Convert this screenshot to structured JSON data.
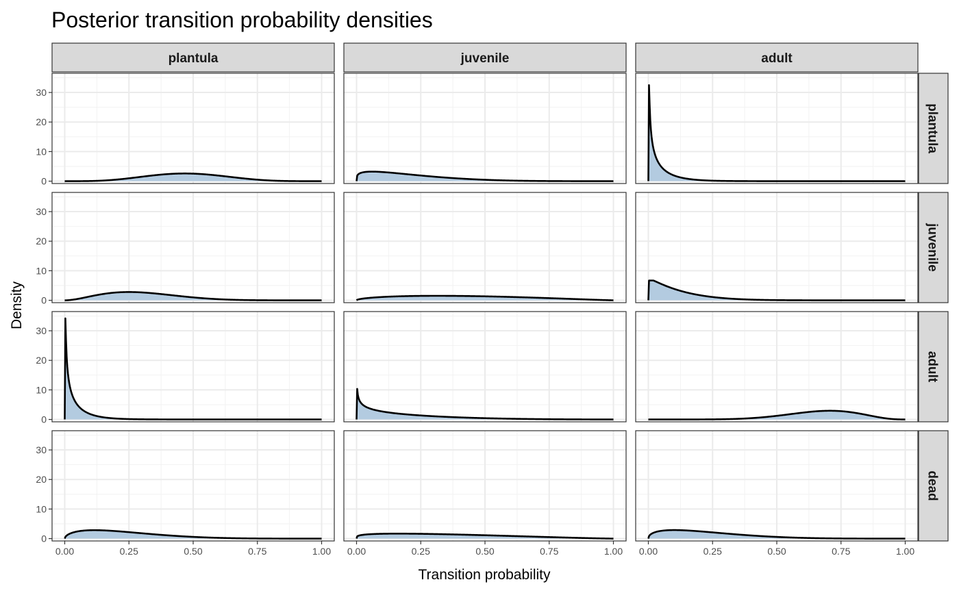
{
  "chart_data": {
    "type": "area",
    "title": "Posterior transition probability densities",
    "xlabel": "Transition probability",
    "ylabel": "Density",
    "xlim": [
      0,
      1
    ],
    "ylim": [
      -0.8,
      36.5
    ],
    "x_ticks": [
      0,
      0.25,
      0.5,
      0.75,
      1
    ],
    "x_tick_labels": [
      "0.00",
      "0.25",
      "0.50",
      "0.75",
      "1.00"
    ],
    "y_ticks": [
      0,
      10,
      20,
      30
    ],
    "y_tick_labels": [
      "0",
      "10",
      "20",
      "30"
    ],
    "columns": [
      "plantula",
      "juvenile",
      "adult"
    ],
    "rows": [
      "plantula",
      "juvenile",
      "adult",
      "dead"
    ],
    "fill_color": "#b3cbe0",
    "line_color": "#000000",
    "panels": [
      {
        "row": "plantula",
        "col": "plantula",
        "dist": "beta",
        "a": 5.2,
        "b": 5.8
      },
      {
        "row": "plantula",
        "col": "juvenile",
        "dist": "beta",
        "a": 1.25,
        "b": 4.9
      },
      {
        "row": "plantula",
        "col": "adult",
        "dist": "beta",
        "a": 0.5,
        "b": 12,
        "max": 32.5
      },
      {
        "row": "juvenile",
        "col": "plantula",
        "dist": "beta",
        "a": 3,
        "b": 7
      },
      {
        "row": "juvenile",
        "col": "juvenile",
        "dist": "beta",
        "a": 1.55,
        "b": 2.2
      },
      {
        "row": "juvenile",
        "col": "adult",
        "dist": "beta",
        "a": 1.03,
        "b": 8,
        "max": 6.7
      },
      {
        "row": "adult",
        "col": "plantula",
        "dist": "beta",
        "a": 0.5,
        "b": 13,
        "max": 34.2
      },
      {
        "row": "adult",
        "col": "juvenile",
        "dist": "beta",
        "a": 0.7,
        "b": 3.3,
        "max": 11
      },
      {
        "row": "adult",
        "col": "adult",
        "dist": "beta",
        "a": 8,
        "b": 3.9
      },
      {
        "row": "dead",
        "col": "plantula",
        "dist": "beta",
        "a": 1.55,
        "b": 5.2
      },
      {
        "row": "dead",
        "col": "juvenile",
        "dist": "beta",
        "a": 1.25,
        "b": 2.3
      },
      {
        "row": "dead",
        "col": "adult",
        "dist": "beta",
        "a": 1.45,
        "b": 5
      }
    ]
  }
}
